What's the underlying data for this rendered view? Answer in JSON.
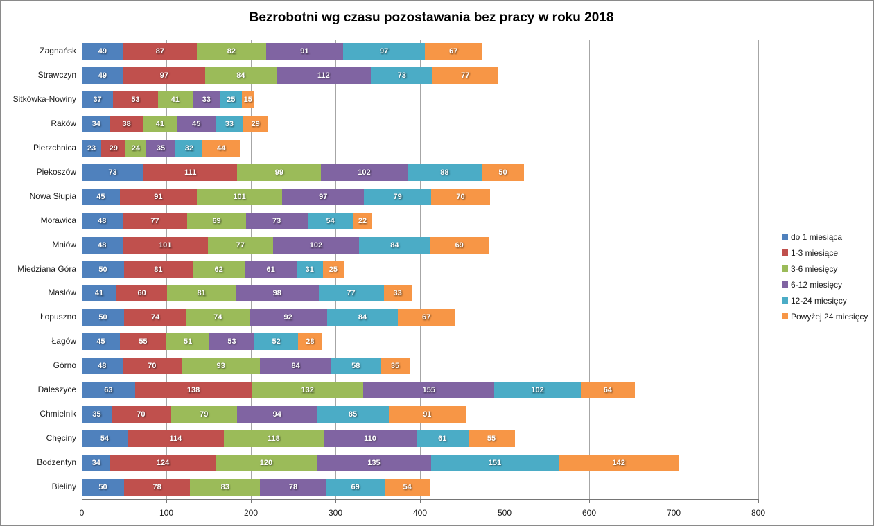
{
  "title": "Bezrobotni wg czasu pozostawania bez pracy w roku 2018",
  "chart_data": {
    "type": "bar",
    "orientation": "horizontal",
    "stacked": true,
    "title": "Bezrobotni wg czasu pozostawania bez pracy w roku 2018",
    "xlabel": "",
    "ylabel": "",
    "xlim": [
      0,
      800
    ],
    "xticks": [
      0,
      100,
      200,
      300,
      400,
      500,
      600,
      700,
      800
    ],
    "grid": "vertical",
    "legend_position": "right",
    "data_labels": true,
    "categories": [
      "Zagnańsk",
      "Strawczyn",
      "Sitkówka-Nowiny",
      "Raków",
      "Pierzchnica",
      "Piekoszów",
      "Nowa Słupia",
      "Morawica",
      "Mniów",
      "Miedziana Góra",
      "Masłów",
      "Łopuszno",
      "Łagów",
      "Górno",
      "Daleszyce",
      "Chmielnik",
      "Chęciny",
      "Bodzentyn",
      "Bieliny"
    ],
    "series": [
      {
        "name": "do 1 miesiąca",
        "color": "#4F81BD",
        "values": [
          49,
          49,
          37,
          34,
          23,
          73,
          45,
          48,
          48,
          50,
          41,
          50,
          45,
          48,
          63,
          35,
          54,
          34,
          50
        ]
      },
      {
        "name": "1-3 miesiące",
        "color": "#C0504D",
        "values": [
          87,
          97,
          53,
          38,
          29,
          111,
          91,
          77,
          101,
          81,
          60,
          74,
          55,
          70,
          138,
          70,
          114,
          124,
          78
        ]
      },
      {
        "name": "3-6 miesięcy",
        "color": "#9BBB59",
        "values": [
          82,
          84,
          41,
          41,
          24,
          99,
          101,
          69,
          77,
          62,
          81,
          74,
          51,
          93,
          132,
          79,
          118,
          120,
          83
        ]
      },
      {
        "name": "6-12 miesięcy",
        "color": "#8064A2",
        "values": [
          91,
          112,
          33,
          45,
          35,
          102,
          97,
          73,
          102,
          61,
          98,
          92,
          53,
          84,
          155,
          94,
          110,
          135,
          78
        ]
      },
      {
        "name": "12-24 miesięcy",
        "color": "#4BACC6",
        "values": [
          97,
          73,
          25,
          33,
          32,
          88,
          79,
          54,
          84,
          31,
          77,
          84,
          52,
          58,
          102,
          85,
          61,
          151,
          69
        ]
      },
      {
        "name": "Powyżej 24 miesięcy",
        "color": "#F79646",
        "values": [
          67,
          77,
          15,
          29,
          44,
          50,
          70,
          22,
          69,
          25,
          33,
          67,
          28,
          35,
          64,
          91,
          55,
          142,
          54
        ]
      }
    ],
    "axis_color": "#757575",
    "gridline_color": "#a6a6a6"
  }
}
